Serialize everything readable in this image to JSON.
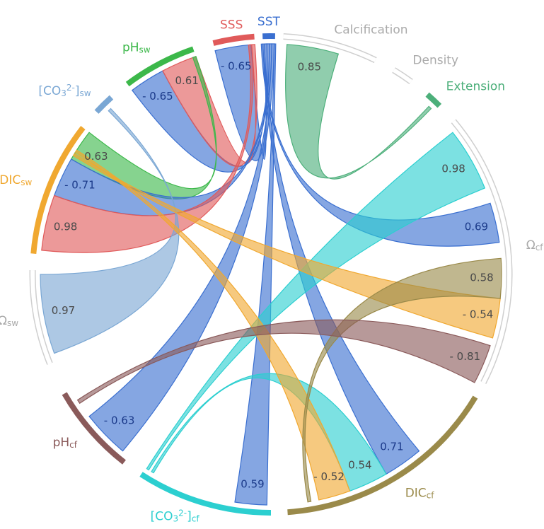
{
  "nodes": [
    {
      "label": [
        {
          "t": "SST"
        }
      ],
      "color": "#3a6fd0"
    },
    {
      "label": [
        {
          "t": "SSS"
        }
      ],
      "color": "#e05a5a"
    },
    {
      "label": [
        {
          "t": "pH"
        },
        {
          "t": "sw",
          "sub": true
        }
      ],
      "color": "#3cb84a"
    },
    {
      "label": [
        {
          "t": "[CO"
        },
        {
          "t": "3",
          "sub": true
        },
        {
          "t": "2-",
          "sup": true
        },
        {
          "t": "]"
        },
        {
          "t": "sw",
          "sub": true
        }
      ],
      "color": "#7aa7d4"
    },
    {
      "label": [
        {
          "t": "DIC"
        },
        {
          "t": "sw",
          "sub": true
        }
      ],
      "color": "#f0a830"
    },
    {
      "label": [
        {
          "t": "Ω"
        },
        {
          "t": "sw",
          "sub": true
        }
      ],
      "color": "#aaaaaa"
    },
    {
      "label": [
        {
          "t": "pH"
        },
        {
          "t": "cf",
          "sub": true
        }
      ],
      "color": "#8a5a5a"
    },
    {
      "label": [
        {
          "t": "[CO"
        },
        {
          "t": "3",
          "sub": true
        },
        {
          "t": "2-",
          "sup": true
        },
        {
          "t": "]"
        },
        {
          "t": "cf",
          "sub": true
        }
      ],
      "color": "#2ccfd0"
    },
    {
      "label": [
        {
          "t": "DIC"
        },
        {
          "t": "cf",
          "sub": true
        }
      ],
      "color": "#9a8a4a"
    },
    {
      "label": [
        {
          "t": "Ω"
        },
        {
          "t": "cf",
          "sub": true
        }
      ],
      "color": "#aaaaaa"
    },
    {
      "label": [
        {
          "t": "Calcification"
        }
      ],
      "color": "#aaaaaa"
    },
    {
      "label": [
        {
          "t": "Density"
        }
      ],
      "color": "#aaaaaa"
    },
    {
      "label": [
        {
          "t": "Extension"
        }
      ],
      "color": "#4caf7a"
    }
  ],
  "links": [
    {
      "source": 0,
      "target": 1,
      "label": "- 0.65",
      "color": "#3a6fd0"
    },
    {
      "source": 0,
      "target": 2,
      "label": "- 0.65",
      "color": "#3a6fd0"
    },
    {
      "source": 1,
      "target": 2,
      "label": "0.61",
      "color": "#e05a5a"
    },
    {
      "source": 10,
      "target": 12,
      "label": "0.85",
      "color": "#4caf7a"
    },
    {
      "source": 2,
      "target": 4,
      "label": "0.63",
      "color": "#3cb84a"
    },
    {
      "source": 0,
      "target": 4,
      "label": "- 0.71",
      "color": "#3a6fd0"
    },
    {
      "source": 1,
      "target": 4,
      "label": "0.98",
      "color": "#e05a5a"
    },
    {
      "source": 3,
      "target": 5,
      "label": "0.97",
      "color": "#7aa7d4"
    },
    {
      "source": 0,
      "target": 6,
      "label": "- 0.63",
      "color": "#3a6fd0"
    },
    {
      "source": 0,
      "target": 7,
      "label": "0.59",
      "color": "#3a6fd0"
    },
    {
      "source": 0,
      "target": 8,
      "label": "0.71",
      "color": "#3a6fd0"
    },
    {
      "source": 0,
      "target": 9,
      "label": "0.69",
      "color": "#3a6fd0"
    },
    {
      "source": 7,
      "target": 9,
      "label": "0.98",
      "color": "#2ccfd0"
    },
    {
      "source": 8,
      "target": 7,
      "label": "0.54",
      "color": "#2ccfd0"
    },
    {
      "source": 4,
      "target": 9,
      "label": "- 0.54",
      "color": "#f0a830"
    },
    {
      "source": 4,
      "target": 8,
      "label": "- 0.52",
      "color": "#f0a830"
    },
    {
      "source": 8,
      "target": 9,
      "label": "0.58",
      "color": "#9a8a4a"
    },
    {
      "source": 6,
      "target": 9,
      "label": "- 0.81",
      "color": "#8a5a5a"
    }
  ]
}
